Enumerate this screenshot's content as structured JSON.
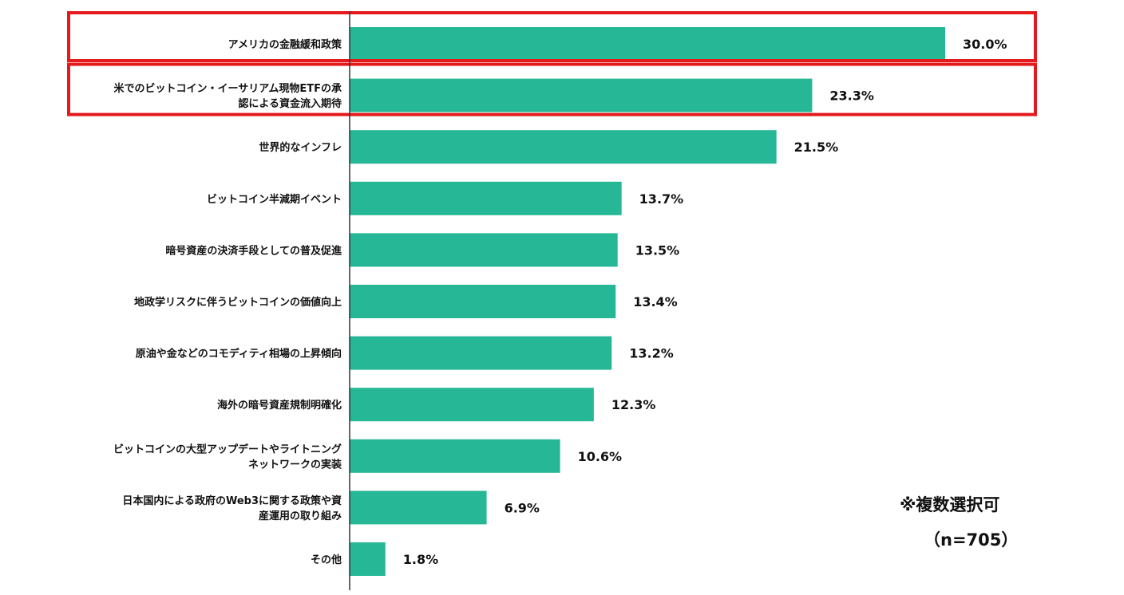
{
  "chart_data": {
    "type": "bar",
    "orientation": "horizontal",
    "categories": [
      [
        "アメリカの金融緩和政策"
      ],
      [
        "米でのビットコイン・イーサリアム現物ETFの承",
        "認による資金流入期待"
      ],
      [
        "世界的なインフレ"
      ],
      [
        "ビットコイン半減期イベント"
      ],
      [
        "暗号資産の決済手段としての普及促進"
      ],
      [
        "地政学リスクに伴うビットコインの価値向上"
      ],
      [
        "原油や金などのコモディティ相場の上昇傾向"
      ],
      [
        "海外の暗号資産規制明確化"
      ],
      [
        "ビットコインの大型アップデートやライトニング",
        "ネットワークの実装"
      ],
      [
        "日本国内による政府のWeb3に関する政策や資",
        "産運用の取り組み"
      ],
      [
        "その他"
      ]
    ],
    "values": [
      30.0,
      23.3,
      21.5,
      13.7,
      13.5,
      13.4,
      13.2,
      12.3,
      10.6,
      6.9,
      1.8
    ],
    "value_labels": [
      "30.0%",
      "23.3%",
      "21.5%",
      "13.7%",
      "13.5%",
      "13.4%",
      "13.2%",
      "12.3%",
      "10.6%",
      "6.9%",
      "1.8%"
    ],
    "highlighted": [
      0,
      1
    ],
    "xlim": [
      0,
      30
    ],
    "grid": false,
    "title": "",
    "xlabel": "",
    "ylabel": ""
  },
  "notes": {
    "multiple_choice": "※複数選択可",
    "sample_size": "（n=705）"
  },
  "colors": {
    "bar": "#25b796",
    "highlight_border": "#e3191c",
    "text": "#111111",
    "axis": "#333333"
  }
}
